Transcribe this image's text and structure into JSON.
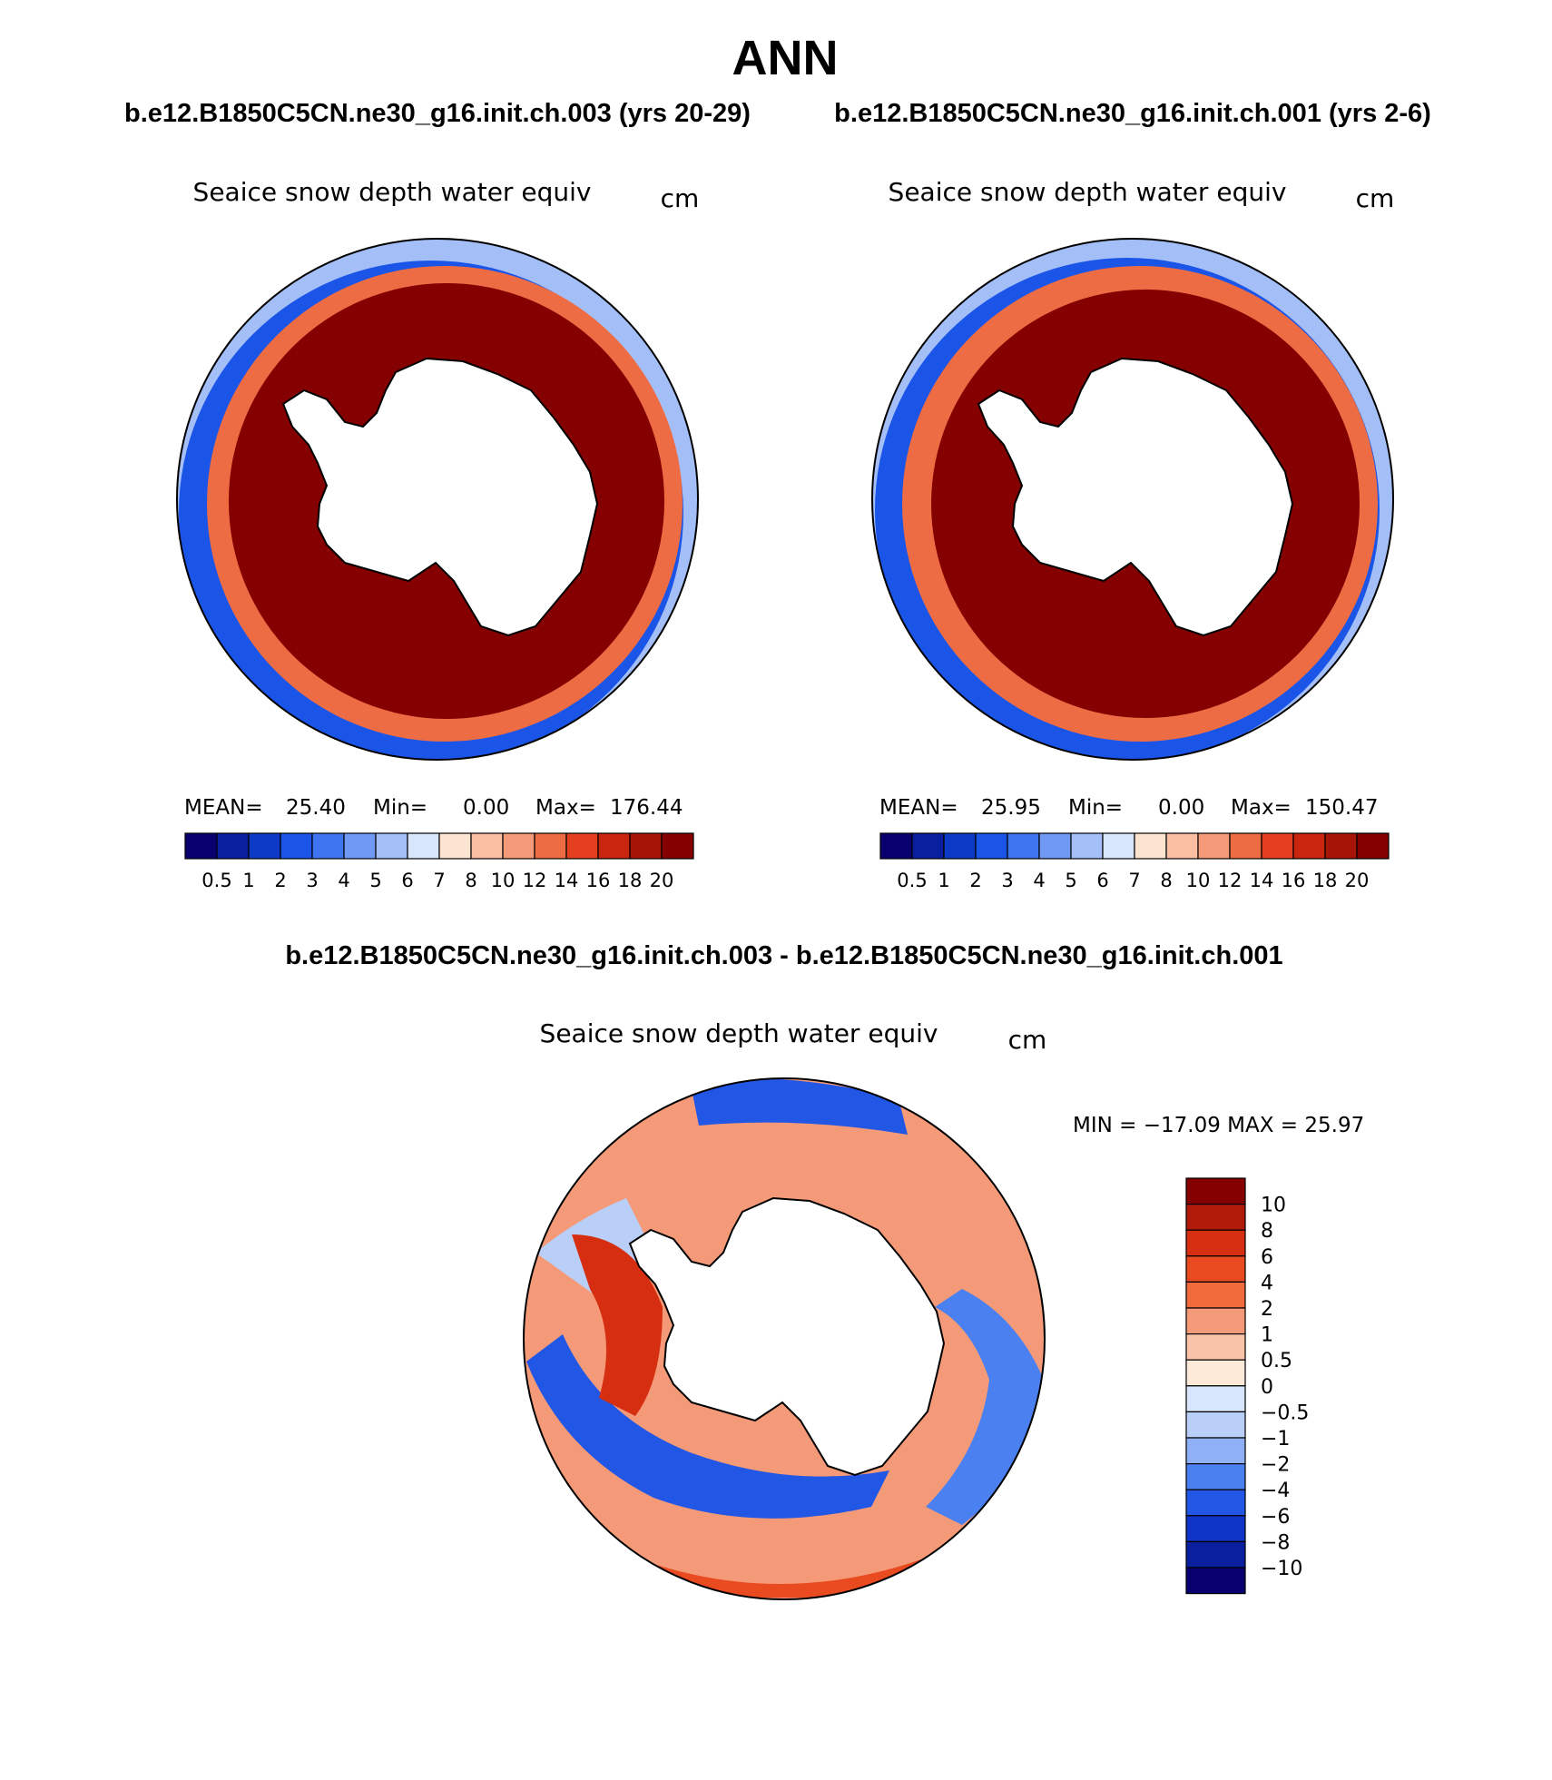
{
  "page_title": "ANN",
  "panels": [
    {
      "case_label": "b.e12.B1850C5CN.ne30_g16.init.ch.003 (yrs 20-29)",
      "variable": "Seaice snow depth water equiv",
      "units": "cm",
      "stats": {
        "mean_label": "MEAN=",
        "mean": "25.40",
        "min_label": "Min=",
        "min": "0.00",
        "max_label": "Max=",
        "max": "176.44"
      }
    },
    {
      "case_label": "b.e12.B1850C5CN.ne30_g16.init.ch.001 (yrs 2-6)",
      "variable": "Seaice snow depth water equiv",
      "units": "cm",
      "stats": {
        "mean_label": "MEAN=",
        "mean": "25.95",
        "min_label": "Min=",
        "min": "0.00",
        "max_label": "Max=",
        "max": "150.47"
      }
    }
  ],
  "diff_panel": {
    "case_label": "b.e12.B1850C5CN.ne30_g16.init.ch.003 - b.e12.B1850C5CN.ne30_g16.init.ch.001",
    "variable": "Seaice snow depth water equiv",
    "units": "cm",
    "minmax_text": "MIN = −17.09 MAX =   25.97"
  },
  "chart_data": [
    {
      "type": "heatmap",
      "projection": "south-polar stereographic",
      "title": "Seaice snow depth water equiv",
      "units": "cm",
      "mean": 25.4,
      "min": 0.0,
      "max": 176.44,
      "colorbar_levels": [
        "0.5",
        "1",
        "2",
        "3",
        "4",
        "5",
        "6",
        "7",
        "8",
        "10",
        "12",
        "14",
        "16",
        "18",
        "20"
      ],
      "colors": [
        "#08006e",
        "#0a1f9e",
        "#0d3ac7",
        "#1a55e8",
        "#3d74f0",
        "#6f99f5",
        "#a4bff8",
        "#d8e6fb",
        "#fde4d1",
        "#fbc0a4",
        "#f59a78",
        "#ee6c44",
        "#e44020",
        "#c9250f",
        "#a51406",
        "#850000"
      ]
    },
    {
      "type": "heatmap",
      "projection": "south-polar stereographic",
      "title": "Seaice snow depth water equiv",
      "units": "cm",
      "mean": 25.95,
      "min": 0.0,
      "max": 150.47,
      "colorbar_levels": [
        "0.5",
        "1",
        "2",
        "3",
        "4",
        "5",
        "6",
        "7",
        "8",
        "10",
        "12",
        "14",
        "16",
        "18",
        "20"
      ],
      "colors": [
        "#08006e",
        "#0a1f9e",
        "#0d3ac7",
        "#1a55e8",
        "#3d74f0",
        "#6f99f5",
        "#a4bff8",
        "#d8e6fb",
        "#fde4d1",
        "#fbc0a4",
        "#f59a78",
        "#ee6c44",
        "#e44020",
        "#c9250f",
        "#a51406",
        "#850000"
      ]
    },
    {
      "type": "heatmap",
      "projection": "south-polar stereographic",
      "title": "Seaice snow depth water equiv",
      "units": "cm",
      "min": -17.09,
      "max": 25.97,
      "colorbar_levels": [
        "10",
        "8",
        "6",
        "4",
        "2",
        "1",
        "0.5",
        "0",
        "−0.5",
        "−1",
        "−2",
        "−4",
        "−6",
        "−8",
        "−10"
      ],
      "colors": [
        "#850000",
        "#b01a08",
        "#d62e10",
        "#ea4a20",
        "#f06a3c",
        "#f59a78",
        "#f9c3a8",
        "#fde9d8",
        "#d8e6fb",
        "#b9cff8",
        "#8fb0f5",
        "#4a80f0",
        "#2257e6",
        "#0f35c8",
        "#0a1f9e",
        "#08006e"
      ]
    }
  ]
}
